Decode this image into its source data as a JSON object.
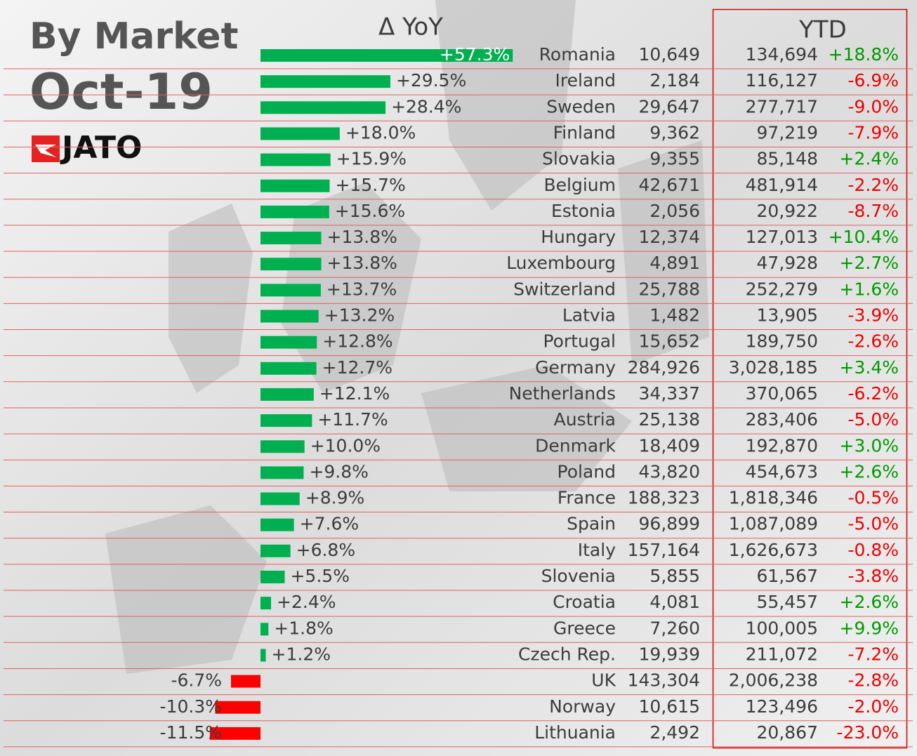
{
  "header": {
    "title": "By Market",
    "subtitle": "Oct-19",
    "logo": "JATO"
  },
  "chart_data": {
    "type": "bar",
    "orientation": "horizontal",
    "title": "Δ YoY",
    "categories": [
      "Romania",
      "Ireland",
      "Sweden",
      "Finland",
      "Slovakia",
      "Belgium",
      "Estonia",
      "Hungary",
      "Luxembourg",
      "Switzerland",
      "Latvia",
      "Portugal",
      "Germany",
      "Netherlands",
      "Austria",
      "Denmark",
      "Poland",
      "France",
      "Spain",
      "Italy",
      "Slovenia",
      "Croatia",
      "Greece",
      "Czech Rep.",
      "UK",
      "Norway",
      "Lithuania"
    ],
    "values": [
      57.3,
      29.5,
      28.4,
      18.0,
      15.9,
      15.7,
      15.6,
      13.8,
      13.8,
      13.7,
      13.2,
      12.8,
      12.7,
      12.1,
      11.7,
      10.0,
      9.8,
      8.9,
      7.6,
      6.8,
      5.5,
      2.4,
      1.8,
      1.2,
      -6.7,
      -10.3,
      -11.5
    ],
    "value_labels": [
      "+57.3%",
      "+29.5%",
      "+28.4%",
      "+18.0%",
      "+15.9%",
      "+15.7%",
      "+15.6%",
      "+13.8%",
      "+13.8%",
      "+13.7%",
      "+13.2%",
      "+12.8%",
      "+12.7%",
      "+12.1%",
      "+11.7%",
      "+10.0%",
      "+9.8%",
      "+8.9%",
      "+7.6%",
      "+6.8%",
      "+5.5%",
      "+2.4%",
      "+1.8%",
      "+1.2%",
      "-6.7%",
      "-10.3%",
      "-11.5%"
    ],
    "positive_color": "#00b050",
    "negative_color": "#ff0000"
  },
  "table": {
    "ytd_header": "YTD",
    "positive_color": "#009a00",
    "negative_color": "#ee0000",
    "rows": [
      [
        "10,649",
        "134,694",
        "+18.8%"
      ],
      [
        "2,184",
        "116,127",
        "-6.9%"
      ],
      [
        "29,647",
        "277,717",
        "-9.0%"
      ],
      [
        "9,362",
        "97,219",
        "-7.9%"
      ],
      [
        "9,355",
        "85,148",
        "+2.4%"
      ],
      [
        "42,671",
        "481,914",
        "-2.2%"
      ],
      [
        "2,056",
        "20,922",
        "-8.7%"
      ],
      [
        "12,374",
        "127,013",
        "+10.4%"
      ],
      [
        "4,891",
        "47,928",
        "+2.7%"
      ],
      [
        "25,788",
        "252,279",
        "+1.6%"
      ],
      [
        "1,482",
        "13,905",
        "-3.9%"
      ],
      [
        "15,652",
        "189,750",
        "-2.6%"
      ],
      [
        "284,926",
        "3,028,185",
        "+3.4%"
      ],
      [
        "34,337",
        "370,065",
        "-6.2%"
      ],
      [
        "25,138",
        "283,406",
        "-5.0%"
      ],
      [
        "18,409",
        "192,870",
        "+3.0%"
      ],
      [
        "43,820",
        "454,673",
        "+2.6%"
      ],
      [
        "188,323",
        "1,818,346",
        "-0.5%"
      ],
      [
        "96,899",
        "1,087,089",
        "-5.0%"
      ],
      [
        "157,164",
        "1,626,673",
        "-0.8%"
      ],
      [
        "5,855",
        "61,567",
        "-3.8%"
      ],
      [
        "4,081",
        "55,457",
        "+2.6%"
      ],
      [
        "7,260",
        "100,005",
        "+9.9%"
      ],
      [
        "19,939",
        "211,072",
        "-7.2%"
      ],
      [
        "143,304",
        "2,006,238",
        "-2.8%"
      ],
      [
        "10,615",
        "123,496",
        "-2.0%"
      ],
      [
        "2,492",
        "20,867",
        "-23.0%"
      ]
    ]
  }
}
